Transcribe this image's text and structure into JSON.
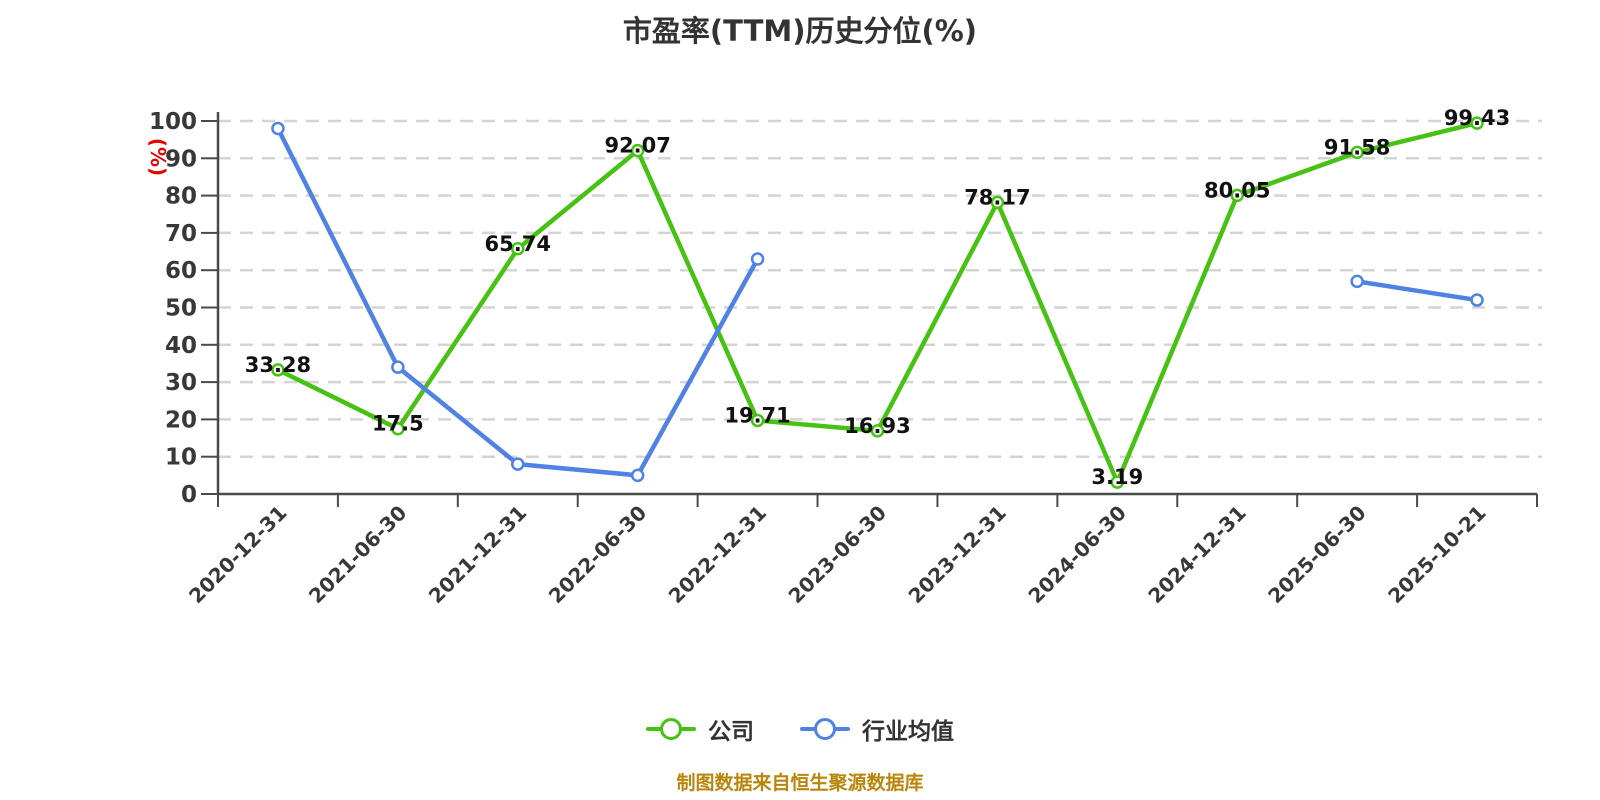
{
  "title": "市盈率(TTM)历史分位(%)",
  "source_note": "制图数据来自恒生聚源数据库",
  "colors": {
    "company_series": "#46c213",
    "industry_series": "#4f82e3",
    "axis_line": "#4a4a4a",
    "tick_label": "#383838",
    "grid_line": "#d4d4d4",
    "data_label": "#111111",
    "y_axis_name": "#e60000",
    "title_text": "#333333",
    "source_text": "#b8860b"
  },
  "legend": {
    "items": [
      {
        "label": "公司"
      },
      {
        "label": "行业均值"
      }
    ]
  },
  "chart_data": {
    "type": "line",
    "title": "市盈率(TTM)历史分位(%)",
    "xlabel": "",
    "ylabel": "(%)",
    "ylim": [
      0,
      100
    ],
    "ytick_step": 10,
    "yticks": [
      0,
      10,
      20,
      30,
      40,
      50,
      60,
      70,
      80,
      90,
      100
    ],
    "grid": "horizontal-dashed",
    "legend_position": "bottom",
    "categories": [
      "2020-12-31",
      "2021-06-30",
      "2021-12-31",
      "2022-06-30",
      "2022-12-31",
      "2023-06-30",
      "2023-12-31",
      "2024-06-30",
      "2024-12-31",
      "2025-06-30",
      "2025-10-21"
    ],
    "series": [
      {
        "name": "公司",
        "color": "#46c213",
        "show_labels": true,
        "values": [
          33.28,
          17.5,
          65.74,
          92.07,
          19.71,
          16.93,
          78.17,
          3.19,
          80.05,
          91.58,
          99.43
        ]
      },
      {
        "name": "行业均值",
        "color": "#4f82e3",
        "show_labels": false,
        "values": [
          98,
          34,
          8,
          5,
          63,
          null,
          null,
          null,
          null,
          57,
          52
        ]
      }
    ]
  }
}
